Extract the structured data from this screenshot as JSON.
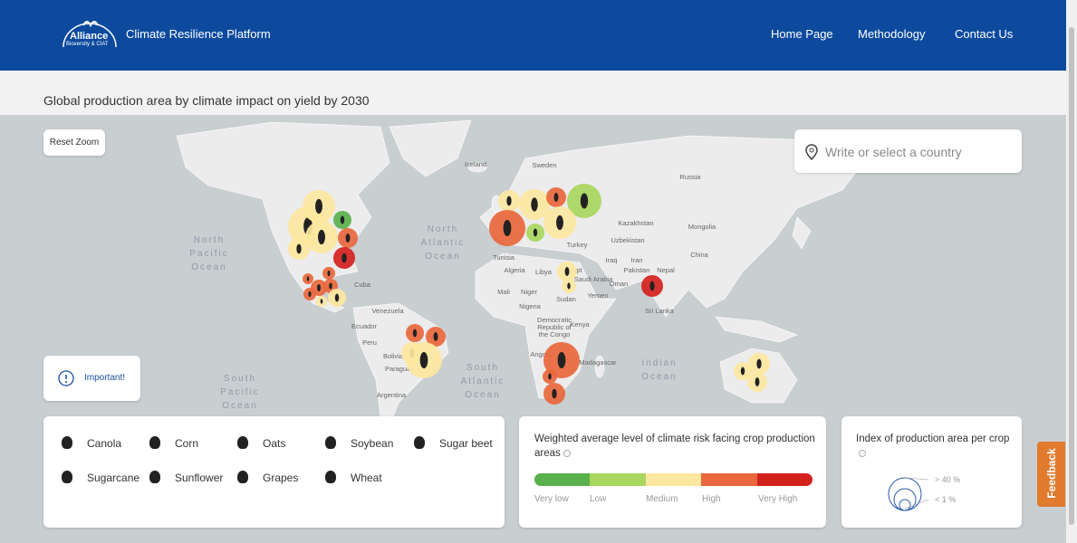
{
  "header": {
    "logo": {
      "name": "Alliance",
      "subtitle": "Bioversity & CIAT"
    },
    "title": "Climate Resilience Platform",
    "nav": [
      "Home Page",
      "Methodology",
      "Contact Us"
    ]
  },
  "subtitle": "Global production area by climate impact on yield by 2030",
  "map": {
    "reset_button": "Reset Zoom",
    "search_placeholder": "Write or select a country",
    "labels": [
      "Iceland",
      "Sweden",
      "Russia",
      "Kazakhstan",
      "Mongolia",
      "Uzbekistan",
      "Turkey",
      "China",
      "Tunisia",
      "Algeria",
      "Libya",
      "Egypt",
      "Iraq",
      "Iran",
      "Saudi Arabia",
      "Pakistan",
      "Nepal",
      "Oman",
      "Mali",
      "Niger",
      "Sudan",
      "Yemen",
      "Nigeria",
      "Sri Lanka",
      "Cuba",
      "Venezuela",
      "Ecuador",
      "Peru",
      "Bolivia",
      "Paraguay",
      "Argentina",
      "Kenya",
      "Angola",
      "Madagascar"
    ],
    "multiline_labels": [
      [
        "Democratic",
        "Republic of",
        "the Congo"
      ]
    ],
    "ocean_labels": [
      [
        "North",
        "Pacific",
        "Ocean"
      ],
      [
        "North",
        "Atlantic",
        "Ocean"
      ],
      [
        "South",
        "Pacific",
        "Ocean"
      ],
      [
        "South",
        "Atlantic",
        "Ocean"
      ],
      [
        "Indian",
        "Ocean"
      ]
    ]
  },
  "important": "Important!",
  "crop_legend": [
    "Canola",
    "Corn",
    "Oats",
    "Soybean",
    "Sugar beet",
    "Sugarcane",
    "Sunflower",
    "Grapes",
    "Wheat"
  ],
  "risk_legend": {
    "title": "Weighted average level of climate risk facing crop production areas",
    "levels": [
      "Very low",
      "Low",
      "Medium",
      "High",
      "Very High"
    ]
  },
  "index_legend": {
    "title": "Index of production area per crop",
    "max": "> 40 %",
    "min": "< 1 %"
  },
  "feedback": "Feedback"
}
